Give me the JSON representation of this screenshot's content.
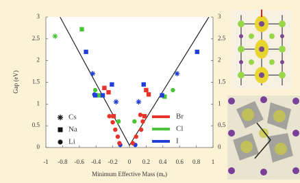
{
  "chart_data": {
    "type": "scatter",
    "x_label": "Minimum Effective Mass (mₑ)",
    "y_label": "Gap (eV)",
    "xlim": [
      -1,
      1
    ],
    "xticks": [
      -1,
      -0.8,
      -0.6,
      -0.4,
      -0.2,
      0,
      0.2,
      0.4,
      0.6,
      0.8,
      1
    ],
    "ylim": [
      0,
      3
    ],
    "yticks": [
      0,
      0.5,
      1,
      1.5,
      2,
      2.5,
      3
    ],
    "y2lim": [
      0,
      3
    ],
    "y2ticks": [
      0,
      0.5,
      1,
      1.5,
      2,
      2.5,
      3
    ],
    "fit_line": {
      "color": "#222222",
      "x": [
        -0.83,
        0,
        0.95
      ],
      "y": [
        3,
        0.05,
        3
      ]
    },
    "marker_legend": [
      {
        "name": "Cs",
        "marker": "star"
      },
      {
        "name": "Na",
        "marker": "square"
      },
      {
        "name": "Li",
        "marker": "circle"
      }
    ],
    "color_legend": [
      {
        "name": "Br",
        "color": "#e8332a"
      },
      {
        "name": "Cl",
        "color": "#4cc43a"
      },
      {
        "name": "I",
        "color": "#1f3fd6"
      }
    ],
    "series": [
      {
        "marker": "star",
        "color": "#4cc43a",
        "x": [
          -0.89
        ],
        "y": [
          2.56
        ]
      },
      {
        "marker": "star",
        "color": "#1f3fd6",
        "x": [
          -0.44,
          -0.16,
          0.11,
          0.57
        ],
        "y": [
          1.7,
          1.05,
          1.05,
          1.7
        ]
      },
      {
        "marker": "square",
        "color": "#4cc43a",
        "x": [
          -0.57,
          -0.36,
          0.42
        ],
        "y": [
          2.72,
          1.2,
          1.17
        ]
      },
      {
        "marker": "square",
        "color": "#1f3fd6",
        "x": [
          -0.52,
          -0.41,
          -0.32,
          -0.21,
          0.17,
          0.39,
          0.81
        ],
        "y": [
          2.2,
          1.2,
          1.2,
          1.45,
          1.45,
          1.2,
          2.2
        ]
      },
      {
        "marker": "square",
        "color": "#e8332a",
        "x": [
          -0.3,
          -0.25,
          -0.19,
          0.2,
          0.23,
          0.18
        ],
        "y": [
          1.37,
          1.27,
          0.72,
          1.32,
          1.22,
          0.72
        ]
      },
      {
        "marker": "circle",
        "color": "#4cc43a",
        "x": [
          -0.41,
          -0.13,
          0.06,
          0.52
        ],
        "y": [
          1.32,
          0.6,
          0.6,
          1.32
        ]
      },
      {
        "marker": "circle",
        "color": "#1f3fd6",
        "x": [
          -0.42,
          -0.11,
          0.07
        ],
        "y": [
          1.22,
          0.06,
          0.06
        ]
      },
      {
        "marker": "circle",
        "color": "#e8332a",
        "x": [
          -0.24,
          -0.2,
          -0.17,
          -0.14,
          -0.12,
          0.13,
          0.16,
          0.14,
          0.08,
          0.04
        ],
        "y": [
          0.72,
          0.58,
          0.41,
          0.25,
          0.1,
          0.75,
          0.6,
          0.41,
          0.25,
          0.1
        ]
      }
    ]
  }
}
